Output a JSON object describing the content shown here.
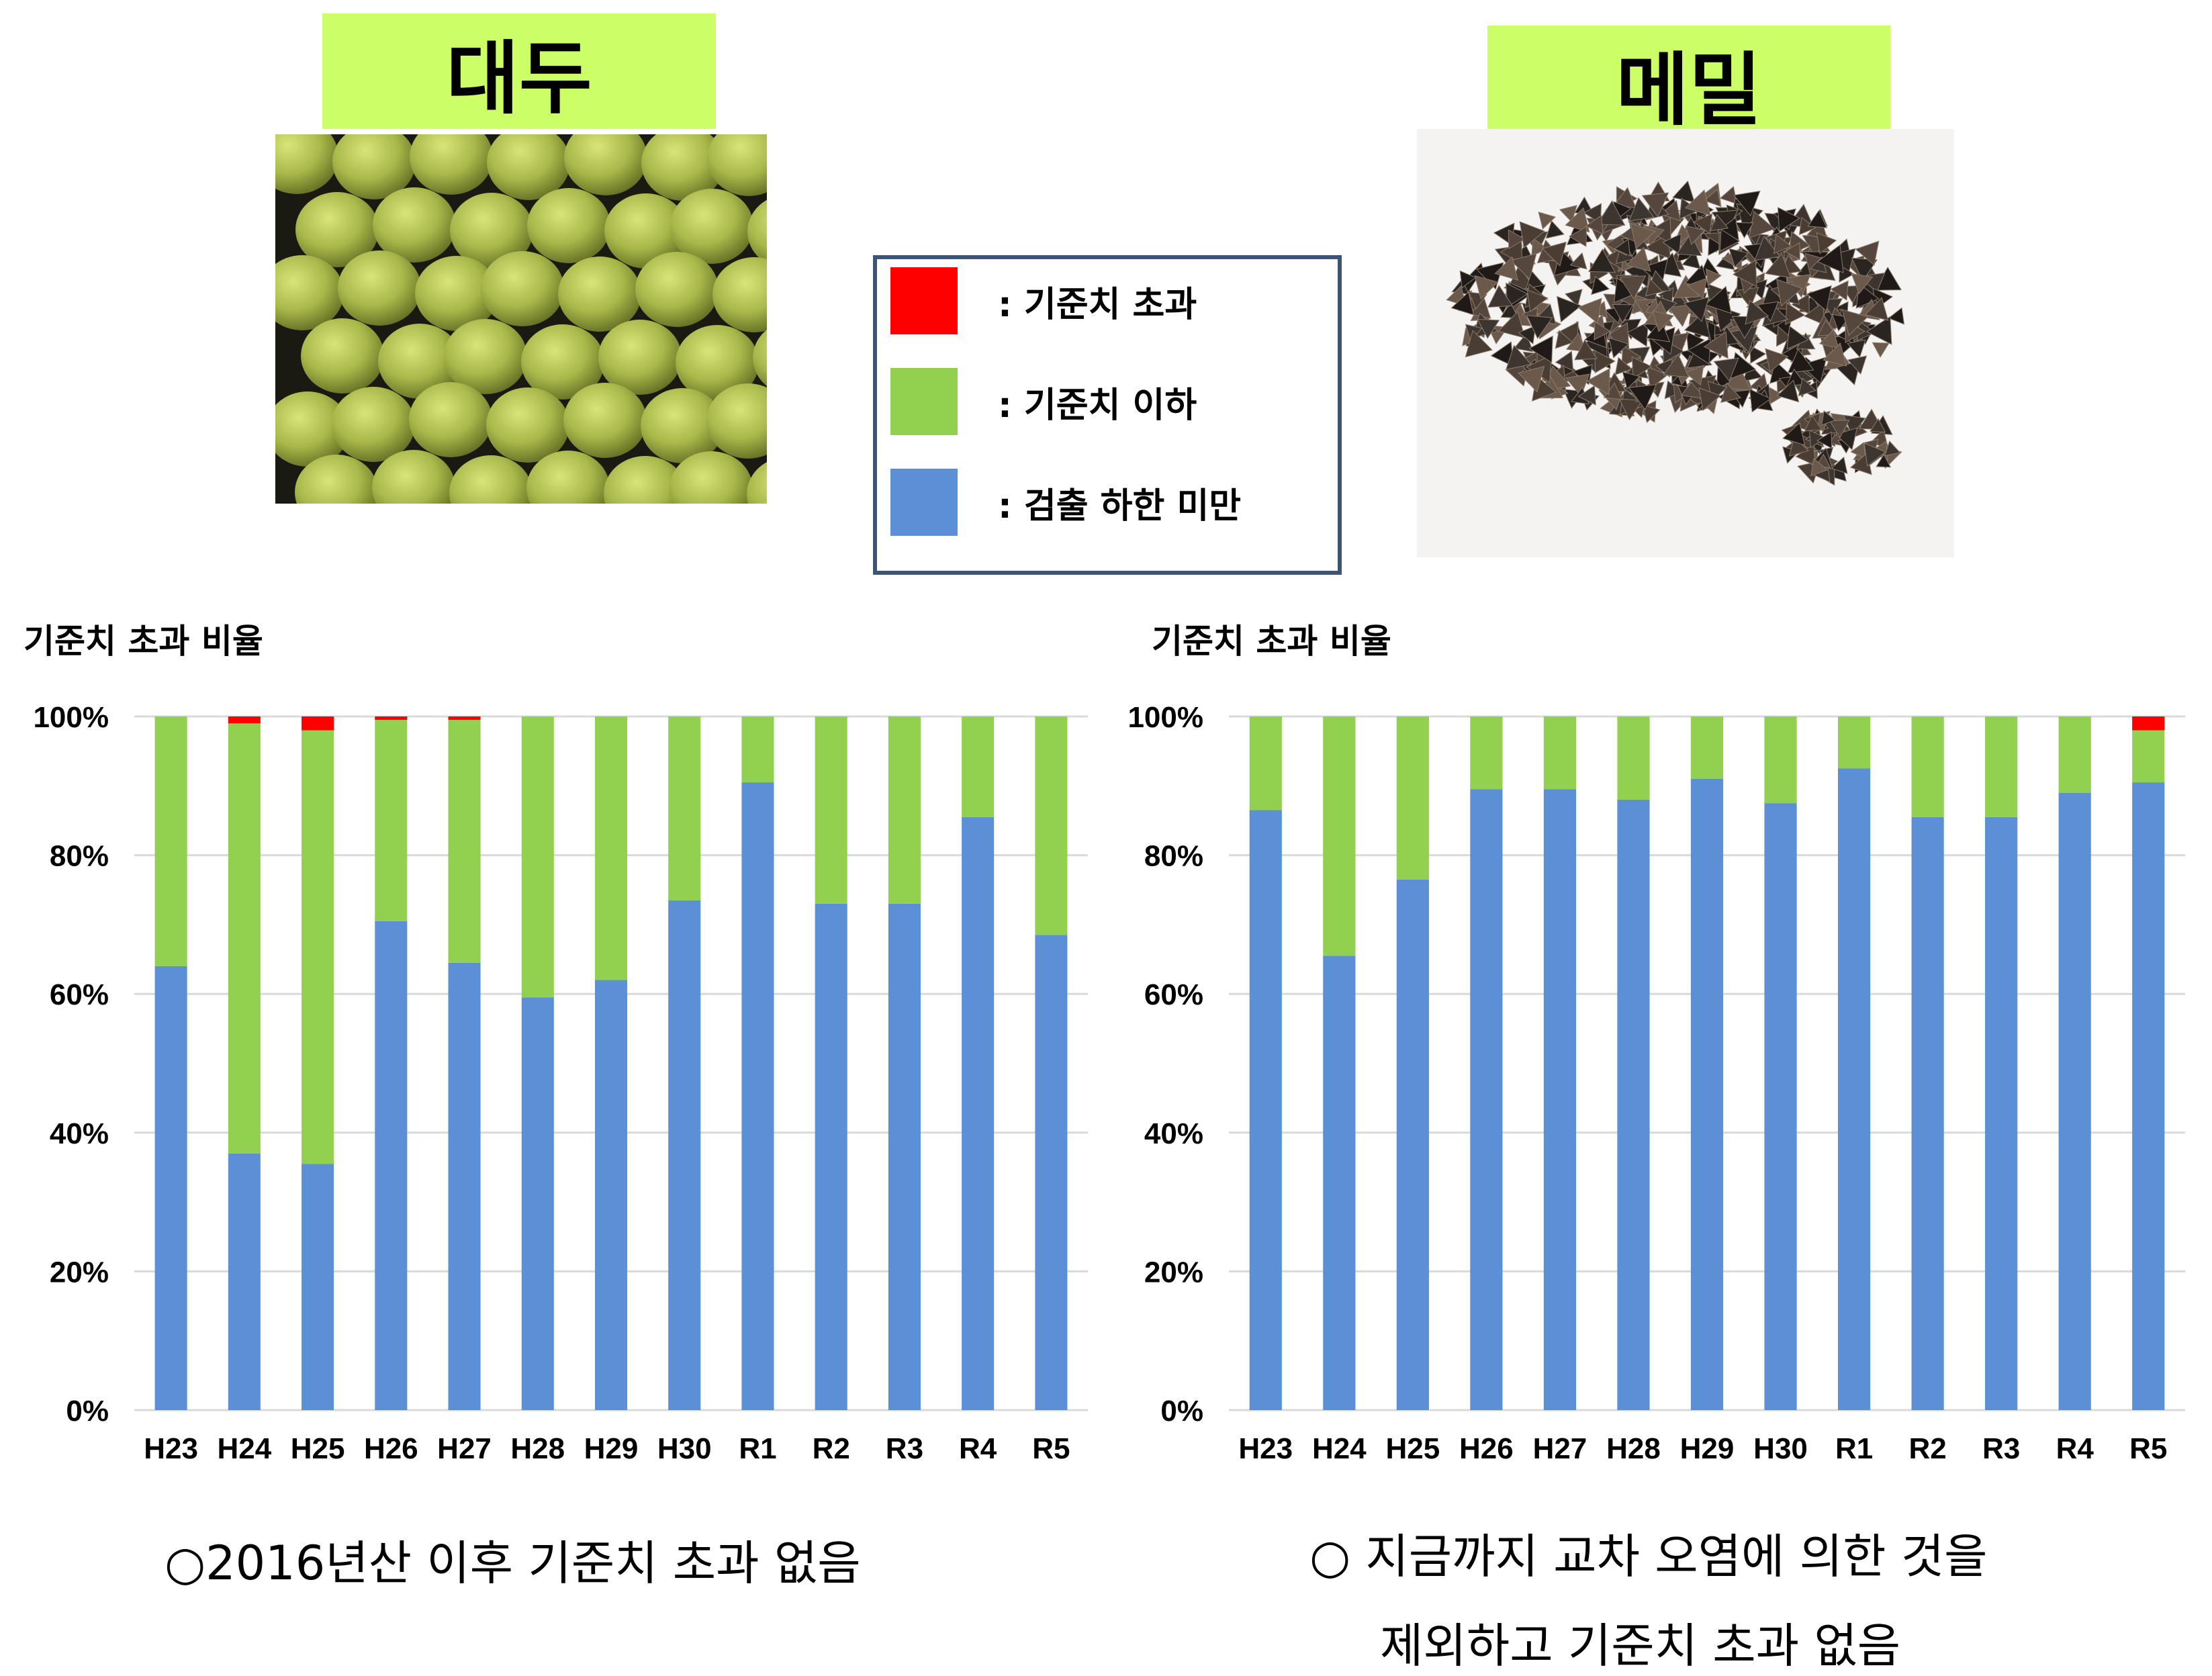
{
  "panels": {
    "left": {
      "title": "대두",
      "chart_heading": "기준치 초과 비율",
      "caption": "○2016년산 이후 기준치 초과 없음"
    },
    "right": {
      "title": "메밀",
      "chart_heading": "기준치 초과 비율",
      "caption_line1": "○ 지금까지 교차 오염에 의한 것을",
      "caption_line2": "제외하고 기준치 초과 없음"
    }
  },
  "legend": [
    {
      "color": "#ff0000",
      "label": ": 기준치 초과"
    },
    {
      "color": "#92d050",
      "label": ": 기준치 이하"
    },
    {
      "color": "#5b8fd6",
      "label": ": 검출 하한 미만"
    }
  ],
  "chart_data": [
    {
      "type": "bar",
      "stacked": true,
      "panel": "대두",
      "categories": [
        "H23",
        "H24",
        "H25",
        "H26",
        "H27",
        "H28",
        "H29",
        "H30",
        "R1",
        "R2",
        "R3",
        "R4",
        "R5"
      ],
      "series": [
        {
          "name": ": 검출 하한 미만",
          "color": "#5b8fd6",
          "values": [
            64,
            37,
            35.5,
            70.5,
            64.5,
            59.5,
            62,
            73.5,
            90.5,
            73,
            73,
            85.5,
            68.5
          ]
        },
        {
          "name": ": 기준치 이하",
          "color": "#92d050",
          "values": [
            36,
            62,
            62.5,
            29,
            35,
            40.5,
            38,
            26.5,
            9.5,
            27,
            27,
            14.5,
            31.5
          ]
        },
        {
          "name": ": 기준치 초과",
          "color": "#ff0000",
          "values": [
            0,
            1,
            2,
            0.5,
            0.5,
            0,
            0,
            0,
            0,
            0,
            0,
            0,
            0
          ]
        }
      ],
      "yticks": [
        "0%",
        "20%",
        "40%",
        "60%",
        "80%",
        "100%"
      ],
      "ylim": [
        0,
        100
      ],
      "grid": true
    },
    {
      "type": "bar",
      "stacked": true,
      "panel": "메밀",
      "categories": [
        "H23",
        "H24",
        "H25",
        "H26",
        "H27",
        "H28",
        "H29",
        "H30",
        "R1",
        "R2",
        "R3",
        "R4",
        "R5"
      ],
      "series": [
        {
          "name": ": 검출 하한 미만",
          "color": "#5b8fd6",
          "values": [
            86.5,
            65.5,
            76.5,
            89.5,
            89.5,
            88,
            91,
            87.5,
            92.5,
            85.5,
            85.5,
            89,
            90.5
          ]
        },
        {
          "name": ": 기준치 이하",
          "color": "#92d050",
          "values": [
            13.5,
            34.5,
            23.5,
            10.5,
            10.5,
            12,
            9,
            12.5,
            7.5,
            14.5,
            14.5,
            11,
            7.5
          ]
        },
        {
          "name": ": 기준치 초과",
          "color": "#ff0000",
          "values": [
            0,
            0,
            0,
            0,
            0,
            0,
            0,
            0,
            0,
            0,
            0,
            0,
            2
          ]
        }
      ],
      "yticks": [
        "0%",
        "20%",
        "40%",
        "60%",
        "80%",
        "100%"
      ],
      "ylim": [
        0,
        100
      ],
      "grid": true
    }
  ]
}
